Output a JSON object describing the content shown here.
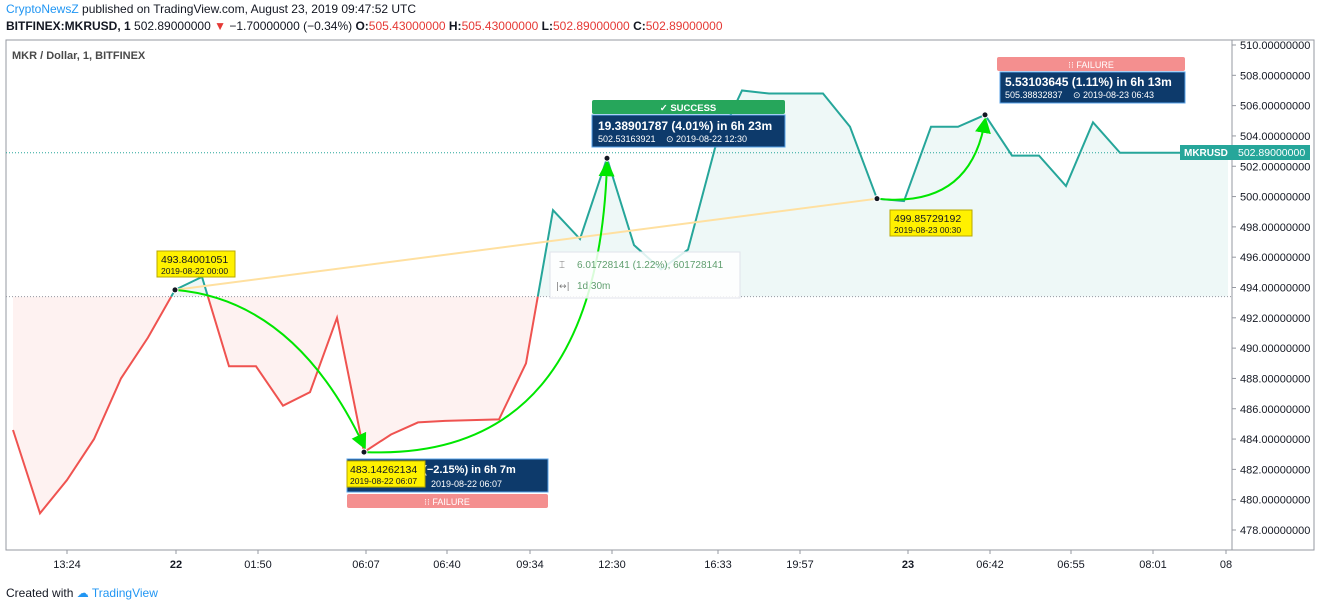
{
  "header": {
    "author": "CryptoNewsZ",
    "published_text": "published on TradingView.com, August 23, 2019 09:47:52 UTC",
    "symbol_line": "BITFINEX:MKRUSD, 1",
    "last_price": "502.89000000",
    "change_arrow": "▼",
    "change": "−1.70000000 (−0.34%)",
    "open_label": "O:",
    "open": "505.43000000",
    "high_label": "H:",
    "high": "505.43000000",
    "low_label": "L:",
    "low": "502.89000000",
    "close_label": "C:",
    "close": "502.89000000"
  },
  "footer": {
    "created_with": "Created with",
    "brand": "TradingView"
  },
  "colors": {
    "up": "#26a69a",
    "down": "#ef5350",
    "arrow": "#00e600",
    "trend": "#ffe0a0",
    "success": "#26a65b",
    "failure": "#f48f8f",
    "info_box": "#0d3a6b",
    "yellow_label": "#fff100"
  },
  "chart_data": {
    "type": "line",
    "title": "MKR / Dollar, 1, BITFINEX",
    "ylim": [
      476.0,
      510.0
    ],
    "y_ticks": [
      "478.00000000",
      "480.00000000",
      "482.00000000",
      "484.00000000",
      "486.00000000",
      "488.00000000",
      "490.00000000",
      "492.00000000",
      "494.00000000",
      "496.00000000",
      "498.00000000",
      "500.00000000",
      "502.00000000",
      "504.00000000",
      "506.00000000",
      "508.00000000",
      "510.00000000"
    ],
    "x_ticks": [
      "13:24",
      "22",
      "01:50",
      "06:07",
      "06:40",
      "09:34",
      "12:30",
      "16:33",
      "19:57",
      "23",
      "06:42",
      "06:55",
      "08:01",
      "08"
    ],
    "price_label": {
      "symbol": "MKRUSD",
      "value": "502.89000000",
      "price": 502.89
    },
    "baseline_price": 493.4,
    "series": [
      {
        "x": [
          0,
          1,
          2,
          3,
          4,
          5,
          6,
          7,
          8,
          9,
          10,
          11,
          12,
          13,
          14,
          15,
          16,
          17,
          18,
          19,
          20,
          21,
          22,
          23,
          24,
          25,
          26,
          27,
          28,
          29,
          30,
          31,
          32,
          33,
          34,
          35,
          36,
          37,
          38,
          39,
          40,
          41,
          42,
          43,
          44,
          45
        ],
        "values": [
          484.6,
          479.1,
          481.3,
          484.0,
          488.0,
          490.7,
          493.84,
          494.7,
          488.8,
          488.8,
          486.2,
          487.1,
          492.0,
          483.14,
          484.3,
          485.1,
          485.2,
          485.25,
          485.3,
          489.0,
          499.1,
          497.2,
          502.53,
          496.8,
          495.2,
          496.5,
          503.2,
          507.0,
          506.8,
          506.8,
          506.8,
          504.6,
          499.86,
          499.7,
          504.6,
          504.6,
          505.39,
          502.7,
          502.7,
          500.7,
          504.9,
          502.89,
          502.89,
          502.89,
          502.89,
          502.89
        ]
      }
    ],
    "annotations": {
      "yellow_labels": [
        {
          "value": "493.84001051",
          "date": "2019-08-22 00:00"
        },
        {
          "value": "483.14262134",
          "date": "2019-08-22 06:07"
        },
        {
          "value": "499.85729192",
          "date": "2019-08-23 00:30"
        }
      ],
      "info_boxes": [
        {
          "title": "19.38901787 (4.01%) in 6h 23m",
          "price": "502.53163921",
          "clock": "⊙",
          "date": "2019-08-22  12:30",
          "badge": "✓ SUCCESS"
        },
        {
          "title": "5.53103645 (1.11%) in 6h 13m",
          "price": "505.38832837",
          "clock": "⊙",
          "date": "2019-08-23  06:43",
          "badge": "⁝⁝ FAILURE"
        },
        {
          "title": "5 (−2.15%) in 6h 7m",
          "price": "",
          "clock": "",
          "date": "2019-08-22  06:07",
          "badge": "⁝⁝ FAILURE"
        }
      ],
      "measure": {
        "line1_icon": "⌶",
        "line1": "6.01728141 (1.22%), 601728141",
        "line2_icon": "|↔|",
        "line2": "1d 30m"
      }
    }
  }
}
